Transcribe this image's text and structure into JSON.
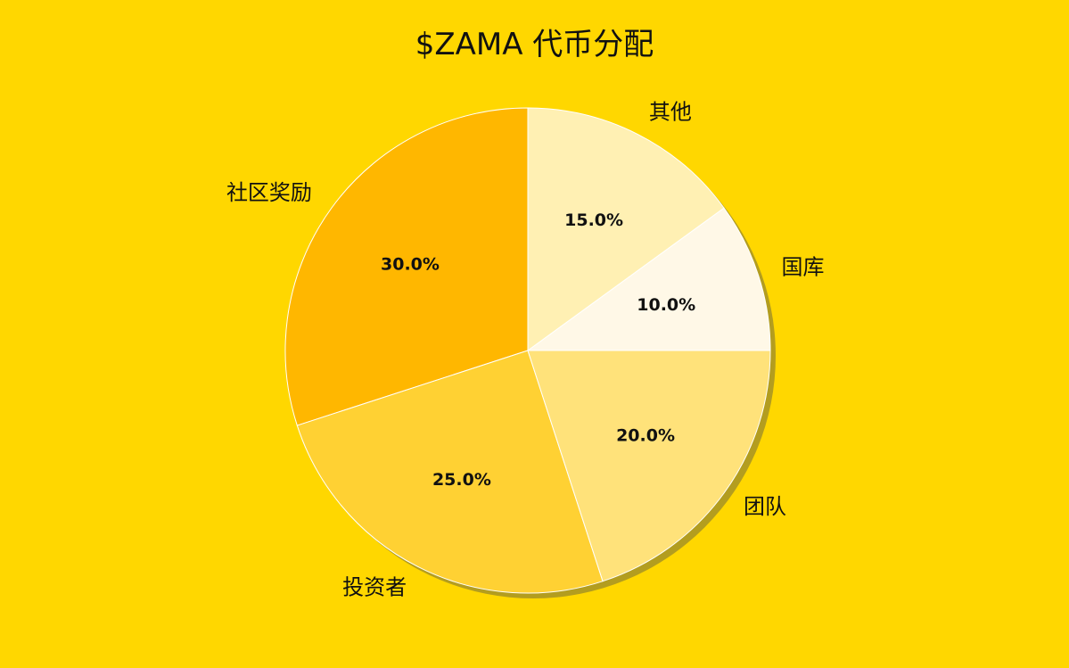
{
  "chart_data": {
    "type": "pie",
    "title": "$ZAMA 代币分配",
    "slices": [
      {
        "label": "国库",
        "value": 10.0,
        "pct_label": "10.0%",
        "color": "#FFF8E7"
      },
      {
        "label": "其他",
        "value": 15.0,
        "pct_label": "15.0%",
        "color": "#FFF0B3"
      },
      {
        "label": "社区奖励",
        "value": 30.0,
        "pct_label": "30.0%",
        "color": "#FFB700"
      },
      {
        "label": "投资者",
        "value": 25.0,
        "pct_label": "25.0%",
        "color": "#FFD133"
      },
      {
        "label": "团队",
        "value": 20.0,
        "pct_label": "20.0%",
        "color": "#FFE27A"
      }
    ],
    "start_angle_deg": 0,
    "direction": "counterclockwise",
    "shadow": true,
    "legend": "none"
  },
  "colors": {
    "background": "#FFD700",
    "text": "#111111",
    "shadow": "#9A8A2A"
  }
}
